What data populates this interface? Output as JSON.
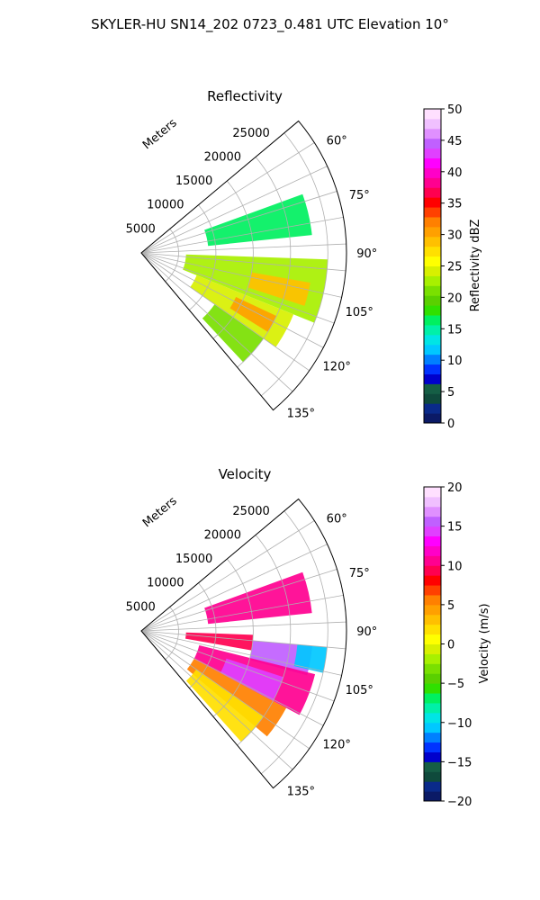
{
  "suptitle": "SKYLER-HU  SN14_202  0723_0.481 UTC Elevation 10°",
  "chart_data": [
    {
      "type": "heatmap",
      "projection": "polar-sector",
      "title": "Reflectivity",
      "radial_label": "Meters",
      "radial_ticks": [
        "5000",
        "10000",
        "15000",
        "20000",
        "25000"
      ],
      "radial_tick_values": [
        5000,
        10000,
        15000,
        20000,
        25000
      ],
      "rlim": [
        0,
        27500
      ],
      "angle_ticks": [
        "60°",
        "75°",
        "90°",
        "105°",
        "120°",
        "135°"
      ],
      "angle_tick_values": [
        60,
        75,
        90,
        105,
        120,
        135
      ],
      "theta_range": [
        50,
        140
      ],
      "grid": true,
      "colorbar": {
        "label": "Reflectivity dBZ",
        "min": 0,
        "max": 50,
        "ticks": [
          "0",
          "5",
          "10",
          "15",
          "20",
          "25",
          "30",
          "35",
          "40",
          "45",
          "50"
        ],
        "tick_values": [
          0,
          5,
          10,
          15,
          20,
          25,
          30,
          35,
          40,
          45,
          50
        ],
        "colors": [
          "#0b1a66",
          "#0a2a8a",
          "#0f4a3c",
          "#155e45",
          "#0000cc",
          "#0033ff",
          "#0080ff",
          "#00c8ff",
          "#00e5e5",
          "#00f0a8",
          "#00f060",
          "#30e000",
          "#5ad000",
          "#7ae000",
          "#a8f000",
          "#d8f000",
          "#ffff00",
          "#ffe000",
          "#ffc000",
          "#ffa000",
          "#ff8000",
          "#ff4000",
          "#ff0000",
          "#ff0050",
          "#ff0090",
          "#ff00c8",
          "#ff00ff",
          "#e040ff",
          "#c060ff",
          "#e090ff",
          "#f0c0ff",
          "#ffe0ff"
        ]
      },
      "echo_regions": [
        {
          "theta": [
            70,
            84
          ],
          "r": [
            9000,
            23000
          ],
          "value": 17
        },
        {
          "theta": [
            92,
            112
          ],
          "r": [
            6000,
            25000
          ],
          "value": 22
        },
        {
          "theta": [
            100,
            108
          ],
          "r": [
            15000,
            23000
          ],
          "value": 29
        },
        {
          "theta": [
            112,
            125
          ],
          "r": [
            8000,
            22000
          ],
          "value": 24
        },
        {
          "theta": [
            115,
            122
          ],
          "r": [
            14000,
            20000
          ],
          "value": 30
        },
        {
          "theta": [
            125,
            137
          ],
          "r": [
            12000,
            20000
          ],
          "value": 21
        }
      ]
    },
    {
      "type": "heatmap",
      "projection": "polar-sector",
      "title": "Velocity",
      "radial_label": "Meters",
      "radial_ticks": [
        "5000",
        "10000",
        "15000",
        "20000",
        "25000"
      ],
      "radial_tick_values": [
        5000,
        10000,
        15000,
        20000,
        25000
      ],
      "rlim": [
        0,
        27500
      ],
      "angle_ticks": [
        "60°",
        "75°",
        "90°",
        "105°",
        "120°",
        "135°"
      ],
      "angle_tick_values": [
        60,
        75,
        90,
        105,
        120,
        135
      ],
      "theta_range": [
        50,
        140
      ],
      "grid": true,
      "colorbar": {
        "label": "Velocity (m/s)",
        "min": -20,
        "max": 20,
        "ticks": [
          "−20",
          "−15",
          "−10",
          "−5",
          "0",
          "5",
          "10",
          "15",
          "20"
        ],
        "tick_values": [
          -20,
          -15,
          -10,
          -5,
          0,
          5,
          10,
          15,
          20
        ],
        "colors": [
          "#0b1a66",
          "#0a2a8a",
          "#0f4a3c",
          "#155e45",
          "#0000cc",
          "#0033ff",
          "#0080ff",
          "#00c8ff",
          "#00e5e5",
          "#00f0a8",
          "#00f060",
          "#30e000",
          "#5ad000",
          "#7ae000",
          "#a8f000",
          "#d8f000",
          "#ffff00",
          "#ffe000",
          "#ffc000",
          "#ffa000",
          "#ff8000",
          "#ff4000",
          "#ff0000",
          "#ff0050",
          "#ff0090",
          "#ff00c8",
          "#ff00ff",
          "#e040ff",
          "#c060ff",
          "#e090ff",
          "#f0c0ff",
          "#ffe0ff"
        ]
      },
      "echo_regions": [
        {
          "theta": [
            70,
            84
          ],
          "r": [
            9000,
            23000
          ],
          "value": 11
        },
        {
          "theta": [
            92,
            100
          ],
          "r": [
            6000,
            15000
          ],
          "value": 9
        },
        {
          "theta": [
            95,
            105
          ],
          "r": [
            15000,
            23000
          ],
          "value": 15
        },
        {
          "theta": [
            95,
            103
          ],
          "r": [
            21000,
            25000
          ],
          "value": -11
        },
        {
          "theta": [
            104,
            118
          ],
          "r": [
            8000,
            24000
          ],
          "value": 10
        },
        {
          "theta": [
            108,
            118
          ],
          "r": [
            12000,
            20000
          ],
          "value": 14
        },
        {
          "theta": [
            118,
            130
          ],
          "r": [
            8000,
            22000
          ],
          "value": 6
        },
        {
          "theta": [
            125,
            138
          ],
          "r": [
            9000,
            20000
          ],
          "value": 2
        }
      ]
    }
  ]
}
